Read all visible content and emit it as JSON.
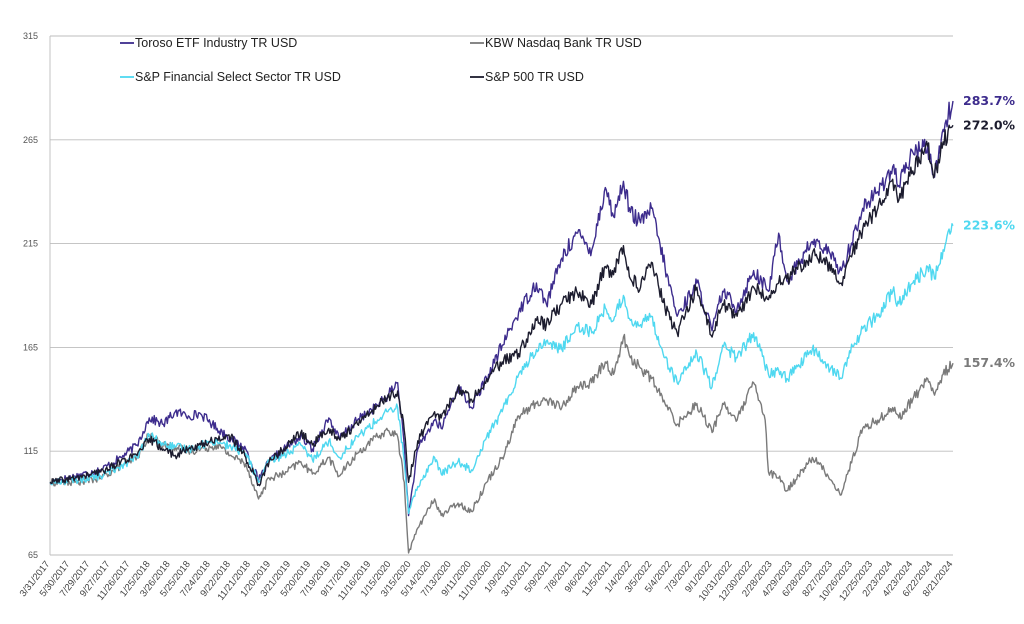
{
  "chart_data": {
    "type": "line",
    "title": "",
    "xlabel": "",
    "ylabel": "",
    "ylim": [
      65,
      315
    ],
    "y_ticks": [
      "315",
      "265",
      "215",
      "165",
      "115",
      "65"
    ],
    "x_tick_labels": [
      "3/31/2017",
      "5/30/2017",
      "7/29/2017",
      "9/27/2017",
      "11/26/2017",
      "1/25/2018",
      "3/26/2018",
      "5/25/2018",
      "7/24/2018",
      "9/22/2018",
      "11/21/2018",
      "1/20/2019",
      "3/21/2019",
      "5/20/2019",
      "7/19/2019",
      "9/17/2019",
      "11/16/2019",
      "1/15/2020",
      "3/15/2020",
      "5/14/2020",
      "7/13/2020",
      "9/11/2020",
      "11/10/2020",
      "1/9/2021",
      "3/10/2021",
      "5/9/2021",
      "7/8/2021",
      "9/6/2021",
      "11/5/2021",
      "1/4/2022",
      "3/5/2022",
      "5/4/2022",
      "7/3/2022",
      "9/1/2022",
      "10/31/2022",
      "12/30/2022",
      "2/28/2023",
      "4/29/2023",
      "6/28/2023",
      "8/27/2023",
      "10/26/2023",
      "12/25/2023",
      "2/23/2024",
      "4/23/2024",
      "6/22/2024",
      "8/21/2024"
    ],
    "x_range": [
      "3/31/2017",
      "9/30/2024"
    ],
    "grid": "horizontal",
    "legend_placement": "top-left",
    "series": [
      {
        "name": "Toroso ETF Industry TR USD",
        "color": "#3d2c8d",
        "end_label": "283.7%",
        "points": [
          [
            "3/31/2017",
            100
          ],
          [
            "6/15/2017",
            103
          ],
          [
            "9/1/2017",
            106
          ],
          [
            "11/1/2017",
            112
          ],
          [
            "12/20/2017",
            118
          ],
          [
            "1/26/2018",
            131
          ],
          [
            "3/10/2018",
            128
          ],
          [
            "4/15/2018",
            134
          ],
          [
            "5/25/2018",
            132
          ],
          [
            "7/1/2018",
            133
          ],
          [
            "8/20/2018",
            126
          ],
          [
            "10/1/2018",
            121
          ],
          [
            "11/15/2018",
            116
          ],
          [
            "12/24/2018",
            101
          ],
          [
            "1/25/2019",
            110
          ],
          [
            "3/10/2019",
            116
          ],
          [
            "5/1/2019",
            122
          ],
          [
            "6/5/2019",
            116
          ],
          [
            "7/25/2019",
            131
          ],
          [
            "8/25/2019",
            121
          ],
          [
            "10/20/2019",
            130
          ],
          [
            "12/20/2019",
            137
          ],
          [
            "1/20/2020",
            142
          ],
          [
            "2/19/2020",
            148
          ],
          [
            "3/10/2020",
            118
          ],
          [
            "3/23/2020",
            84
          ],
          [
            "4/20/2020",
            116
          ],
          [
            "6/10/2020",
            130
          ],
          [
            "6/30/2020",
            126
          ],
          [
            "8/20/2020",
            146
          ],
          [
            "9/30/2020",
            136
          ],
          [
            "11/15/2020",
            150
          ],
          [
            "1/1/2021",
            166
          ],
          [
            "2/20/2021",
            182
          ],
          [
            "4/15/2021",
            196
          ],
          [
            "5/15/2021",
            186
          ],
          [
            "7/1/2021",
            208
          ],
          [
            "8/15/2021",
            220
          ],
          [
            "9/30/2021",
            212
          ],
          [
            "11/10/2021",
            242
          ],
          [
            "12/5/2021",
            228
          ],
          [
            "1/4/2022",
            245
          ],
          [
            "1/25/2022",
            230
          ],
          [
            "2/25/2022",
            225
          ],
          [
            "3/30/2022",
            232
          ],
          [
            "5/10/2022",
            204
          ],
          [
            "6/16/2022",
            180
          ],
          [
            "8/15/2022",
            196
          ],
          [
            "9/30/2022",
            173
          ],
          [
            "11/1/2022",
            192
          ],
          [
            "12/15/2022",
            184
          ],
          [
            "2/3/2023",
            202
          ],
          [
            "3/20/2023",
            192
          ],
          [
            "4/20/2023",
            220
          ],
          [
            "5/15/2023",
            197
          ],
          [
            "7/31/2023",
            216
          ],
          [
            "9/5/2023",
            213
          ],
          [
            "10/27/2023",
            202
          ],
          [
            "11/15/2023",
            210
          ],
          [
            "12/31/2023",
            232
          ],
          [
            "2/15/2024",
            240
          ],
          [
            "3/31/2024",
            252
          ],
          [
            "4/19/2024",
            243
          ],
          [
            "5/31/2024",
            259
          ],
          [
            "7/15/2024",
            262
          ],
          [
            "8/5/2024",
            247
          ],
          [
            "8/31/2024",
            270
          ],
          [
            "9/30/2024",
            283.7
          ]
        ]
      },
      {
        "name": "KBW Nasdaq Bank TR USD",
        "color": "#7a7a7a",
        "end_label": "157.4%",
        "points": [
          [
            "3/31/2017",
            100
          ],
          [
            "6/15/2017",
            100
          ],
          [
            "9/1/2017",
            102
          ],
          [
            "11/1/2017",
            108
          ],
          [
            "12/20/2017",
            112
          ],
          [
            "1/26/2018",
            123
          ],
          [
            "3/10/2018",
            118
          ],
          [
            "4/15/2018",
            117
          ],
          [
            "5/25/2018",
            115
          ],
          [
            "7/1/2018",
            116
          ],
          [
            "8/20/2018",
            118
          ],
          [
            "10/1/2018",
            113
          ],
          [
            "11/15/2018",
            109
          ],
          [
            "12/24/2018",
            92
          ],
          [
            "1/25/2019",
            102
          ],
          [
            "3/10/2019",
            104
          ],
          [
            "5/1/2019",
            110
          ],
          [
            "6/5/2019",
            104
          ],
          [
            "7/25/2019",
            112
          ],
          [
            "8/25/2019",
            103
          ],
          [
            "10/20/2019",
            114
          ],
          [
            "12/20/2019",
            122
          ],
          [
            "1/20/2020",
            125
          ],
          [
            "2/19/2020",
            122
          ],
          [
            "3/10/2020",
            100
          ],
          [
            "3/23/2020",
            66
          ],
          [
            "4/20/2020",
            78
          ],
          [
            "6/10/2020",
            92
          ],
          [
            "6/30/2020",
            84
          ],
          [
            "8/20/2020",
            90
          ],
          [
            "9/30/2020",
            86
          ],
          [
            "11/15/2020",
            100
          ],
          [
            "1/1/2021",
            112
          ],
          [
            "2/20/2021",
            132
          ],
          [
            "4/15/2021",
            138
          ],
          [
            "5/15/2021",
            140
          ],
          [
            "7/1/2021",
            136
          ],
          [
            "8/15/2021",
            146
          ],
          [
            "9/30/2021",
            148
          ],
          [
            "11/10/2021",
            158
          ],
          [
            "12/5/2021",
            152
          ],
          [
            "1/4/2022",
            170
          ],
          [
            "1/25/2022",
            160
          ],
          [
            "2/25/2022",
            155
          ],
          [
            "3/30/2022",
            150
          ],
          [
            "5/10/2022",
            138
          ],
          [
            "6/16/2022",
            128
          ],
          [
            "8/15/2022",
            138
          ],
          [
            "9/30/2022",
            124
          ],
          [
            "11/1/2022",
            138
          ],
          [
            "12/15/2022",
            130
          ],
          [
            "2/3/2023",
            148
          ],
          [
            "3/10/2023",
            130
          ],
          [
            "3/20/2023",
            105
          ],
          [
            "4/20/2023",
            102
          ],
          [
            "5/15/2023",
            96
          ],
          [
            "7/31/2023",
            112
          ],
          [
            "9/5/2023",
            106
          ],
          [
            "10/27/2023",
            94
          ],
          [
            "11/15/2023",
            104
          ],
          [
            "12/31/2023",
            126
          ],
          [
            "2/15/2024",
            130
          ],
          [
            "3/31/2024",
            136
          ],
          [
            "4/19/2024",
            131
          ],
          [
            "5/31/2024",
            140
          ],
          [
            "7/15/2024",
            150
          ],
          [
            "8/5/2024",
            142
          ],
          [
            "8/31/2024",
            152
          ],
          [
            "9/30/2024",
            157.4
          ]
        ]
      },
      {
        "name": "S&P Financial Select Sector TR USD",
        "color": "#4fd8f0",
        "end_label": "223.6%",
        "points": [
          [
            "3/31/2017",
            100
          ],
          [
            "6/15/2017",
            101
          ],
          [
            "9/1/2017",
            103
          ],
          [
            "11/1/2017",
            108
          ],
          [
            "12/20/2017",
            112
          ],
          [
            "1/26/2018",
            123
          ],
          [
            "3/10/2018",
            118
          ],
          [
            "4/15/2018",
            117
          ],
          [
            "5/25/2018",
            116
          ],
          [
            "7/1/2018",
            118
          ],
          [
            "8/20/2018",
            120
          ],
          [
            "10/1/2018",
            117
          ],
          [
            "11/15/2018",
            114
          ],
          [
            "12/24/2018",
            100
          ],
          [
            "1/25/2019",
            110
          ],
          [
            "3/10/2019",
            113
          ],
          [
            "5/1/2019",
            118
          ],
          [
            "6/5/2019",
            111
          ],
          [
            "7/25/2019",
            120
          ],
          [
            "8/25/2019",
            112
          ],
          [
            "10/20/2019",
            122
          ],
          [
            "12/20/2019",
            130
          ],
          [
            "1/20/2020",
            134
          ],
          [
            "2/19/2020",
            136
          ],
          [
            "3/10/2020",
            110
          ],
          [
            "3/23/2020",
            85
          ],
          [
            "4/20/2020",
            98
          ],
          [
            "6/10/2020",
            112
          ],
          [
            "6/30/2020",
            104
          ],
          [
            "8/20/2020",
            110
          ],
          [
            "9/30/2020",
            106
          ],
          [
            "11/15/2020",
            122
          ],
          [
            "1/1/2021",
            134
          ],
          [
            "2/20/2021",
            152
          ],
          [
            "4/15/2021",
            164
          ],
          [
            "5/15/2021",
            168
          ],
          [
            "7/1/2021",
            164
          ],
          [
            "8/15/2021",
            176
          ],
          [
            "9/30/2021",
            172
          ],
          [
            "11/10/2021",
            184
          ],
          [
            "12/5/2021",
            178
          ],
          [
            "1/4/2022",
            190
          ],
          [
            "1/25/2022",
            178
          ],
          [
            "2/25/2022",
            176
          ],
          [
            "3/30/2022",
            180
          ],
          [
            "5/10/2022",
            160
          ],
          [
            "6/16/2022",
            148
          ],
          [
            "8/15/2022",
            162
          ],
          [
            "9/30/2022",
            146
          ],
          [
            "11/1/2022",
            166
          ],
          [
            "12/15/2022",
            160
          ],
          [
            "2/3/2023",
            172
          ],
          [
            "3/20/2023",
            152
          ],
          [
            "4/20/2023",
            154
          ],
          [
            "5/15/2023",
            150
          ],
          [
            "7/31/2023",
            164
          ],
          [
            "9/5/2023",
            158
          ],
          [
            "10/27/2023",
            150
          ],
          [
            "11/15/2023",
            160
          ],
          [
            "12/31/2023",
            174
          ],
          [
            "2/15/2024",
            180
          ],
          [
            "3/31/2024",
            192
          ],
          [
            "4/19/2024",
            186
          ],
          [
            "5/31/2024",
            196
          ],
          [
            "7/15/2024",
            204
          ],
          [
            "8/5/2024",
            198
          ],
          [
            "8/31/2024",
            212
          ],
          [
            "9/30/2024",
            223.6
          ]
        ]
      },
      {
        "name": "S&P 500 TR USD",
        "color": "#1c1c2e",
        "end_label": "272.0%",
        "points": [
          [
            "3/31/2017",
            100
          ],
          [
            "6/15/2017",
            102
          ],
          [
            "9/1/2017",
            105
          ],
          [
            "11/1/2017",
            110
          ],
          [
            "12/20/2017",
            113
          ],
          [
            "1/26/2018",
            121
          ],
          [
            "3/10/2018",
            116
          ],
          [
            "4/15/2018",
            113
          ],
          [
            "5/25/2018",
            116
          ],
          [
            "7/1/2018",
            118
          ],
          [
            "8/20/2018",
            121
          ],
          [
            "10/1/2018",
            122
          ],
          [
            "11/15/2018",
            112
          ],
          [
            "12/24/2018",
            99
          ],
          [
            "1/25/2019",
            110
          ],
          [
            "3/10/2019",
            116
          ],
          [
            "5/1/2019",
            124
          ],
          [
            "6/5/2019",
            118
          ],
          [
            "7/25/2019",
            126
          ],
          [
            "8/25/2019",
            121
          ],
          [
            "10/20/2019",
            128
          ],
          [
            "12/20/2019",
            137
          ],
          [
            "1/20/2020",
            141
          ],
          [
            "2/19/2020",
            144
          ],
          [
            "3/10/2020",
            125
          ],
          [
            "3/23/2020",
            100
          ],
          [
            "4/20/2020",
            120
          ],
          [
            "6/10/2020",
            134
          ],
          [
            "6/30/2020",
            131
          ],
          [
            "8/20/2020",
            145
          ],
          [
            "9/30/2020",
            140
          ],
          [
            "11/15/2020",
            150
          ],
          [
            "1/1/2021",
            158
          ],
          [
            "2/20/2021",
            162
          ],
          [
            "4/15/2021",
            178
          ],
          [
            "5/15/2021",
            176
          ],
          [
            "7/1/2021",
            186
          ],
          [
            "8/15/2021",
            192
          ],
          [
            "9/30/2021",
            186
          ],
          [
            "11/10/2021",
            204
          ],
          [
            "12/5/2021",
            200
          ],
          [
            "1/4/2022",
            214
          ],
          [
            "1/25/2022",
            198
          ],
          [
            "2/25/2022",
            194
          ],
          [
            "3/30/2022",
            206
          ],
          [
            "5/10/2022",
            184
          ],
          [
            "6/16/2022",
            172
          ],
          [
            "8/15/2022",
            194
          ],
          [
            "9/30/2022",
            170
          ],
          [
            "11/1/2022",
            186
          ],
          [
            "12/15/2022",
            180
          ],
          [
            "2/3/2023",
            194
          ],
          [
            "3/20/2023",
            188
          ],
          [
            "4/20/2023",
            196
          ],
          [
            "5/15/2023",
            198
          ],
          [
            "7/31/2023",
            210
          ],
          [
            "9/5/2023",
            208
          ],
          [
            "10/27/2023",
            196
          ],
          [
            "11/15/2023",
            206
          ],
          [
            "12/31/2023",
            222
          ],
          [
            "2/15/2024",
            232
          ],
          [
            "3/31/2024",
            246
          ],
          [
            "4/19/2024",
            236
          ],
          [
            "5/31/2024",
            250
          ],
          [
            "7/15/2024",
            262
          ],
          [
            "8/5/2024",
            248
          ],
          [
            "8/31/2024",
            264
          ],
          [
            "9/30/2024",
            272.0
          ]
        ]
      }
    ]
  }
}
